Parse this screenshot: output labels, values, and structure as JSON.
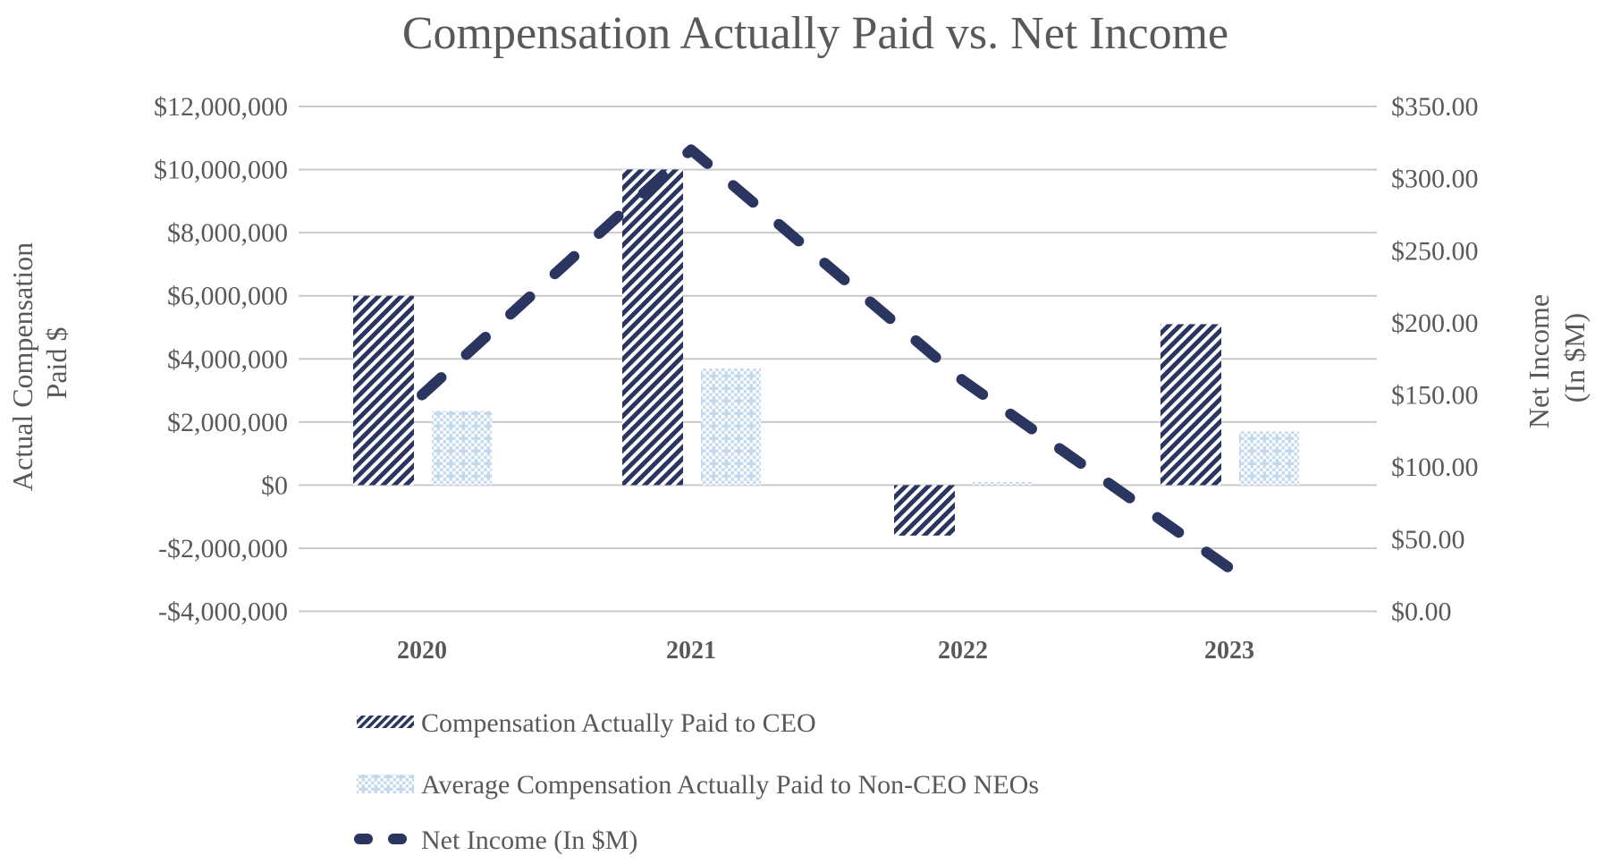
{
  "title": "Compensation Actually Paid vs. Net Income",
  "chart_data": {
    "type": "combo",
    "subtype": "bars-with-dashed-line-dual-axis",
    "categories": [
      "2020",
      "2021",
      "2022",
      "2023"
    ],
    "series": [
      {
        "name": "Compensation Actually Paid to CEO",
        "type": "bar",
        "axis": "left",
        "pattern": "diagonal-hatch",
        "values": [
          6000000,
          10000000,
          -1600000,
          5100000
        ]
      },
      {
        "name": "Average Compensation Actually Paid to Non-CEO NEOs",
        "type": "bar",
        "axis": "left",
        "pattern": "dot-grid",
        "values": [
          2350000,
          3700000,
          100000,
          1700000
        ]
      },
      {
        "name": "Net Income (In $M)",
        "type": "line",
        "axis": "right",
        "style": "dashed",
        "values": [
          150,
          320,
          160,
          30
        ]
      }
    ],
    "left_axis": {
      "title_lines": [
        "Actual Compensation",
        "Paid $"
      ],
      "min": -4000000,
      "max": 12000000,
      "step": 2000000,
      "tick_labels": [
        "$12,000,000",
        "$10,000,000",
        "$8,000,000",
        "$6,000,000",
        "$4,000,000",
        "$2,000,000",
        "$0",
        "-$2,000,000",
        "-$4,000,000"
      ]
    },
    "right_axis": {
      "title_lines": [
        "Net Income",
        "(In $M)"
      ],
      "min": 0,
      "max": 350,
      "step": 50,
      "tick_labels": [
        "$350.00",
        "$300.00",
        "$250.00",
        "$200.00",
        "$150.00",
        "$100.00",
        "$50.00",
        "$0.00"
      ]
    },
    "grid": true,
    "legend_position": "bottom-left"
  },
  "colors": {
    "navy": "#2A3560",
    "light_blue": "#C3D9EE",
    "gridline": "#C9C9C9",
    "text": "#595959",
    "background": "#FFFFFF"
  }
}
